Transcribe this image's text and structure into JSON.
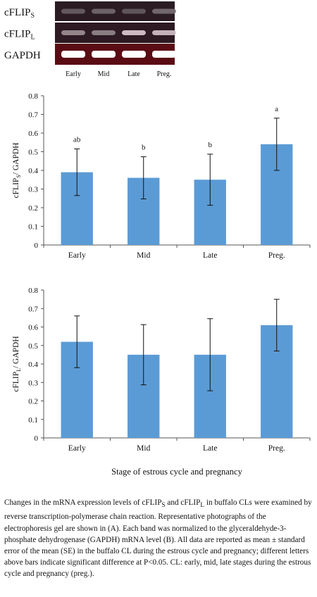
{
  "gel": {
    "rows": [
      {
        "label": "cFLIP",
        "sub": "S"
      },
      {
        "label": "cFLIP",
        "sub": "L"
      },
      {
        "label": "GAPDH",
        "sub": ""
      }
    ],
    "lanes": [
      "Early",
      "Mid",
      "Late",
      "Preg."
    ],
    "band_intensity": [
      [
        0.3,
        0.35,
        0.28,
        0.38
      ],
      [
        0.55,
        0.5,
        0.85,
        0.8
      ],
      [
        1.0,
        1.0,
        1.0,
        1.0
      ]
    ]
  },
  "chart_data": [
    {
      "type": "bar",
      "categories": [
        "Early",
        "Mid",
        "Late",
        "Preg."
      ],
      "values": [
        0.39,
        0.36,
        0.35,
        0.54
      ],
      "errors": [
        0.125,
        0.113,
        0.137,
        0.14
      ],
      "sig_letters": [
        "ab",
        "b",
        "b",
        "a"
      ],
      "ylabel": "cFLIP",
      "ylabel_sub": "S",
      "ylabel_suffix": "/ GAPDH",
      "xlabel": "",
      "ylim": [
        0,
        0.8
      ],
      "yticks": [
        "0",
        "0.1",
        "0.2",
        "0.3",
        "0.4",
        "0.5",
        "0.6",
        "0.7",
        "0.8"
      ],
      "bar_color": "#5b9bd5"
    },
    {
      "type": "bar",
      "categories": [
        "Early",
        "Mid",
        "Late",
        "Preg."
      ],
      "values": [
        0.52,
        0.45,
        0.45,
        0.61
      ],
      "errors": [
        0.14,
        0.163,
        0.195,
        0.14
      ],
      "sig_letters": [
        "",
        "",
        "",
        ""
      ],
      "ylabel": "cFLIP",
      "ylabel_sub": "L",
      "ylabel_suffix": "/ GAPDH",
      "xlabel": "Stage of estrous cycle and pregnancy",
      "ylim": [
        0,
        0.8
      ],
      "yticks": [
        "0",
        "0.1",
        "0.2",
        "0.3",
        "0.4",
        "0.5",
        "0.6",
        "0.7",
        "0.8"
      ],
      "bar_color": "#5b9bd5"
    }
  ],
  "caption": {
    "p1": "Changes in the mRNA expression levels of cFLIP",
    "s1": "S",
    "p2": " and cFLIP",
    "s2": "L",
    "p3": " in buffalo CLs were examined by reverse transcription-polymerase chain reaction. Representative photographs of the electrophoresis gel are shown in (A). Each band was normalized to the glyceraldehyde-3-phosphate dehydrogenase (GAPDH) mRNA level (B). All data are reported as mean ± standard error of the mean (SE) in the buffalo CL during the estrous cycle and pregnancy; different letters above bars indicate significant difference at P<0.05. CL: early, mid, late stages during the estrous cycle and pregnancy (preg.)."
  }
}
